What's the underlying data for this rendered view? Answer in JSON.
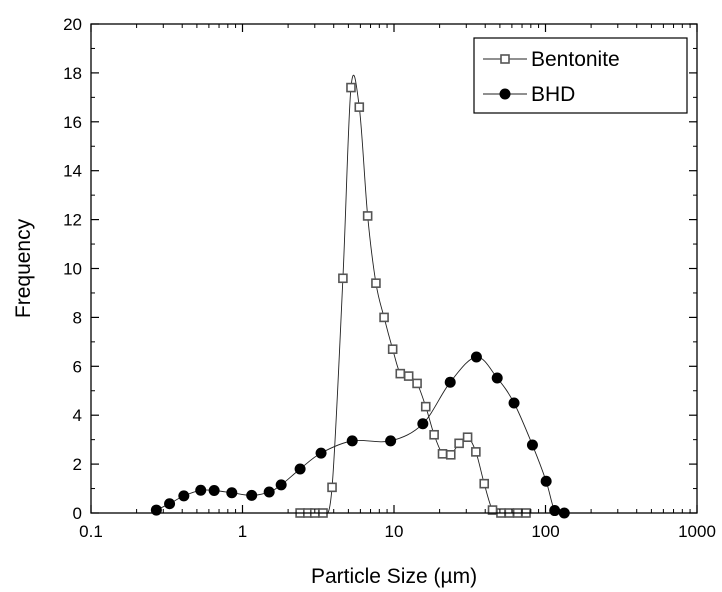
{
  "chart_data": {
    "type": "scatter",
    "xlabel": "Particle Size (µm)",
    "ylabel": "Frequency",
    "xscale": "log",
    "xlim": [
      0.1,
      1000
    ],
    "ylim": [
      0,
      20
    ],
    "x_ticks": [
      "0.1",
      "1",
      "10",
      "100",
      "1000"
    ],
    "y_ticks": [
      "0",
      "2",
      "4",
      "6",
      "8",
      "10",
      "12",
      "14",
      "16",
      "18",
      "20"
    ],
    "grid": false,
    "legend_position": "top-right",
    "series": [
      {
        "name": "Bentonite",
        "marker": "open-square",
        "color": "#555555",
        "x": [
          2.4,
          2.7,
          3.0,
          3.4,
          3.9,
          4.6,
          5.2,
          5.9,
          6.7,
          7.6,
          8.6,
          9.8,
          11.0,
          12.5,
          14.2,
          16.2,
          18.4,
          20.9,
          23.7,
          26.9,
          30.6,
          34.7,
          39.4,
          44.7,
          50.8,
          57.7,
          65.5,
          74.4
        ],
        "y": [
          0.0,
          0.0,
          0.0,
          0.0,
          1.05,
          9.6,
          17.4,
          16.6,
          12.15,
          9.4,
          8.0,
          6.7,
          5.7,
          5.6,
          5.3,
          4.35,
          3.2,
          2.42,
          2.38,
          2.85,
          3.1,
          2.5,
          1.2,
          0.12,
          0.0,
          0.0,
          0.0,
          0.0
        ]
      },
      {
        "name": "BHD",
        "marker": "filled-circle",
        "color": "#000000",
        "x": [
          0.27,
          0.33,
          0.41,
          0.53,
          0.65,
          0.85,
          1.15,
          1.5,
          1.8,
          2.4,
          3.3,
          5.3,
          9.5,
          15.5,
          23.5,
          35,
          48,
          62,
          82,
          101,
          115,
          133
        ],
        "y": [
          0.12,
          0.38,
          0.7,
          0.93,
          0.92,
          0.83,
          0.72,
          0.86,
          1.15,
          1.8,
          2.45,
          2.95,
          2.95,
          3.65,
          5.35,
          6.38,
          5.52,
          4.5,
          2.78,
          1.3,
          0.1,
          0.0
        ]
      }
    ]
  }
}
